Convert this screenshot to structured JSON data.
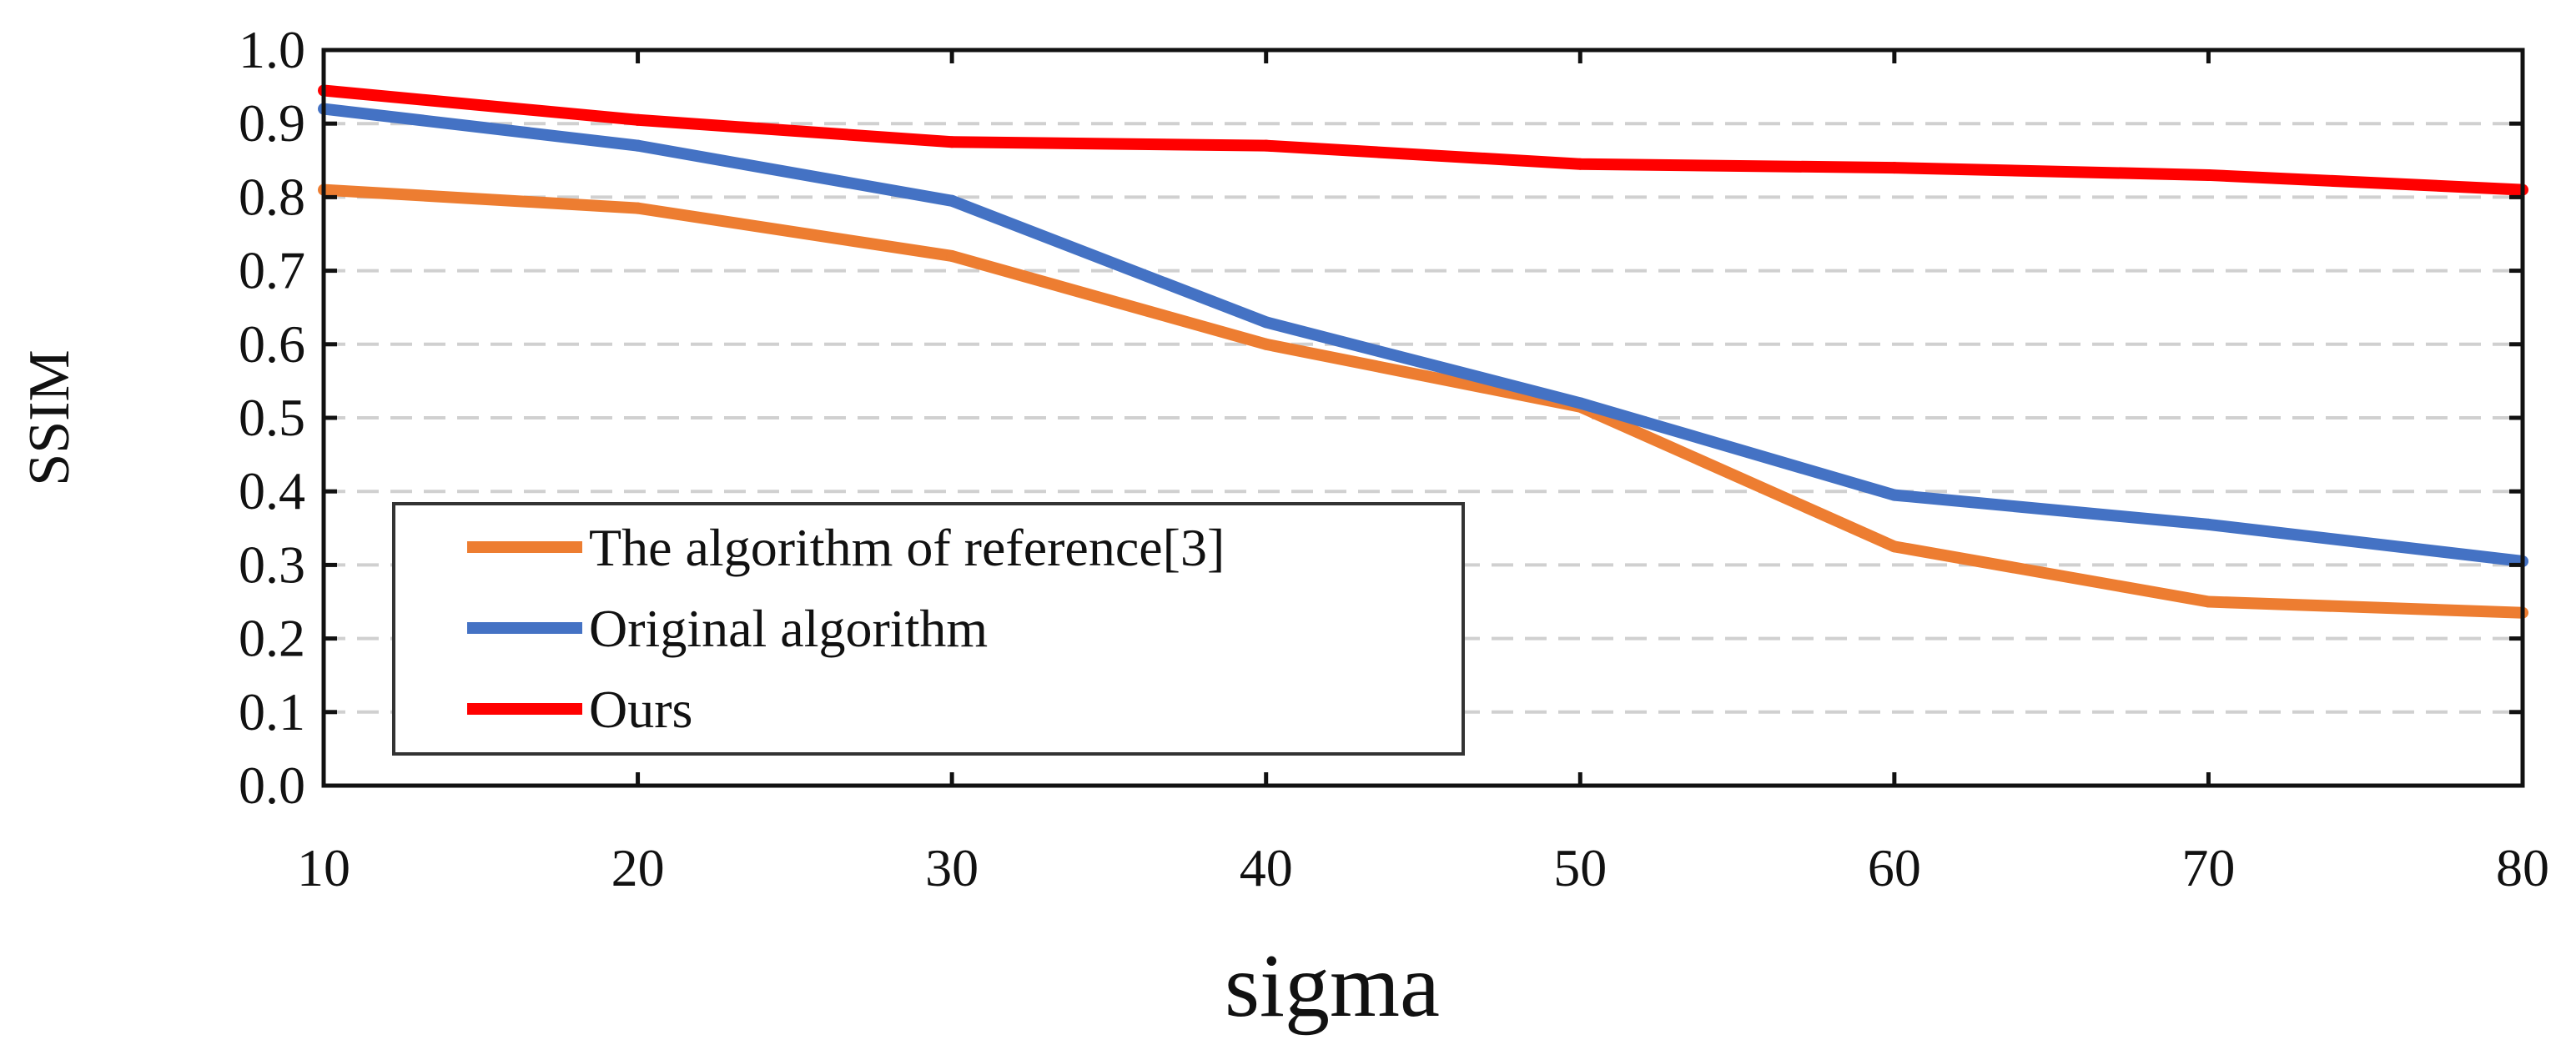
{
  "chart_data": {
    "type": "line",
    "title": "",
    "xlabel": "sigma",
    "ylabel": "SSIM",
    "x": [
      10,
      20,
      30,
      40,
      50,
      60,
      70,
      80
    ],
    "xlim": [
      10,
      80
    ],
    "ylim": [
      0,
      1
    ],
    "x_ticks": [
      "10",
      "20",
      "30",
      "40",
      "50",
      "60",
      "70",
      "80"
    ],
    "y_ticks": [
      "0.0",
      "0.1",
      "0.2",
      "0.3",
      "0.4",
      "0.5",
      "0.6",
      "0.7",
      "0.8",
      "0.9",
      "1.0"
    ],
    "grid": "horizontal dashed",
    "legend_position": "bottom-left",
    "series": [
      {
        "name": "The algorithm of reference[3]",
        "color": "#ED7D31",
        "values": [
          0.81,
          0.785,
          0.72,
          0.6,
          0.515,
          0.325,
          0.25,
          0.235
        ]
      },
      {
        "name": "Original algorithm",
        "color": "#4472C4",
        "values": [
          0.92,
          0.87,
          0.795,
          0.63,
          0.52,
          0.395,
          0.355,
          0.305
        ]
      },
      {
        "name": "Ours",
        "color": "#FF0000",
        "values": [
          0.945,
          0.905,
          0.875,
          0.87,
          0.845,
          0.84,
          0.83,
          0.81
        ]
      }
    ]
  }
}
